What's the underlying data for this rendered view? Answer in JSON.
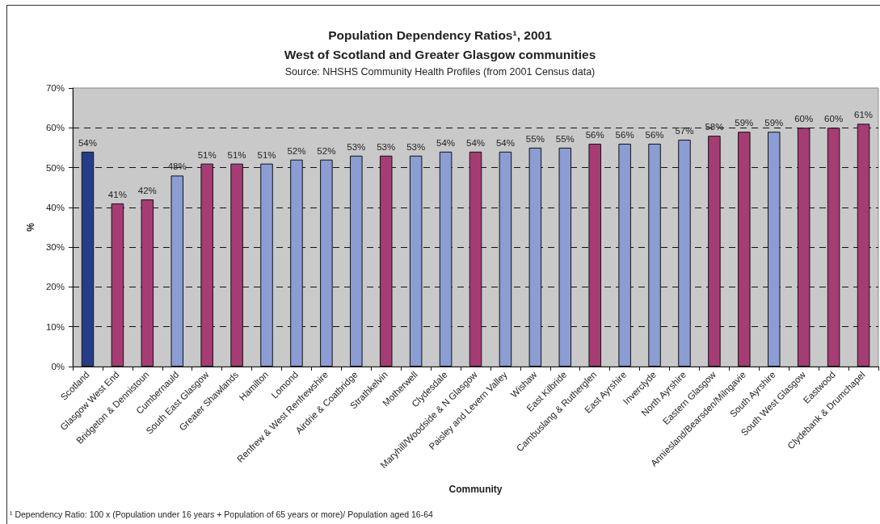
{
  "chart_data": {
    "type": "bar",
    "title": "Population Dependency Ratios¹, 2001\nWest of Scotland and Greater Glasgow communities",
    "subtitle": "Source: NHSHS Community Health Profiles (from 2001 Census data)",
    "xlabel": "Community",
    "ylabel": "%",
    "annotations": [
      "¹ Dependency Ratio: 100 x (Population under 16 years + Population of 65 years or more)/ Population aged 16-64"
    ],
    "categories": [
      "Scotland",
      "Glasgow West End",
      "Bridgeton & Dennistoun",
      "Cumbernauld",
      "South East Glasgow",
      "Greater Shawlands",
      "Hamilton",
      "Lomond",
      "Renfrew & West Renfrewshire",
      "Airdrie & Coatbridge",
      "Strathkelvin",
      "Motherwell",
      "Clydesdale",
      "Maryhill/Woodside & N Glasgow",
      "Paisley and Levern Valley",
      "Wishaw",
      "East Kilbride",
      "Cambuslang & Rutherglen",
      "East Ayrshire",
      "Inverclyde",
      "North Ayrshire",
      "Eastern Glasgow",
      "Anniesland/Bearsden/Milngavie",
      "South Ayrshire",
      "South West Glasgow",
      "Eastwood",
      "Clydebank & Drumchapel"
    ],
    "values": [
      54,
      41,
      42,
      48,
      51,
      51,
      51,
      52,
      52,
      53,
      53,
      53,
      54,
      54,
      54,
      55,
      55,
      56,
      56,
      56,
      57,
      58,
      59,
      59,
      60,
      60,
      61
    ],
    "value_labels": [
      "54%",
      "41%",
      "42%",
      "48%",
      "51%",
      "51%",
      "51%",
      "52%",
      "52%",
      "53%",
      "53%",
      "53%",
      "54%",
      "54%",
      "54%",
      "55%",
      "55%",
      "56%",
      "56%",
      "56%",
      "57%",
      "58%",
      "59%",
      "59%",
      "60%",
      "60%",
      "61%"
    ],
    "colors": [
      "#253c88",
      "#a53d74",
      "#a53d74",
      "#8b9dd3",
      "#a53d74",
      "#a53d74",
      "#8b9dd3",
      "#8b9dd3",
      "#8b9dd3",
      "#8b9dd3",
      "#a53d74",
      "#8b9dd3",
      "#8b9dd3",
      "#a53d74",
      "#8b9dd3",
      "#8b9dd3",
      "#8b9dd3",
      "#a53d74",
      "#8b9dd3",
      "#8b9dd3",
      "#8b9dd3",
      "#a53d74",
      "#a53d74",
      "#8b9dd3",
      "#a53d74",
      "#a53d74",
      "#a53d74"
    ],
    "ylim": [
      0,
      70
    ],
    "yticks": [
      {
        "value": 0,
        "label": "0%"
      },
      {
        "value": 10,
        "label": "10%"
      },
      {
        "value": 20,
        "label": "20%"
      },
      {
        "value": 30,
        "label": "30%"
      },
      {
        "value": 40,
        "label": "40%"
      },
      {
        "value": 50,
        "label": "50%"
      },
      {
        "value": 60,
        "label": "60%"
      },
      {
        "value": 70,
        "label": "70%"
      }
    ],
    "grid": "y"
  }
}
